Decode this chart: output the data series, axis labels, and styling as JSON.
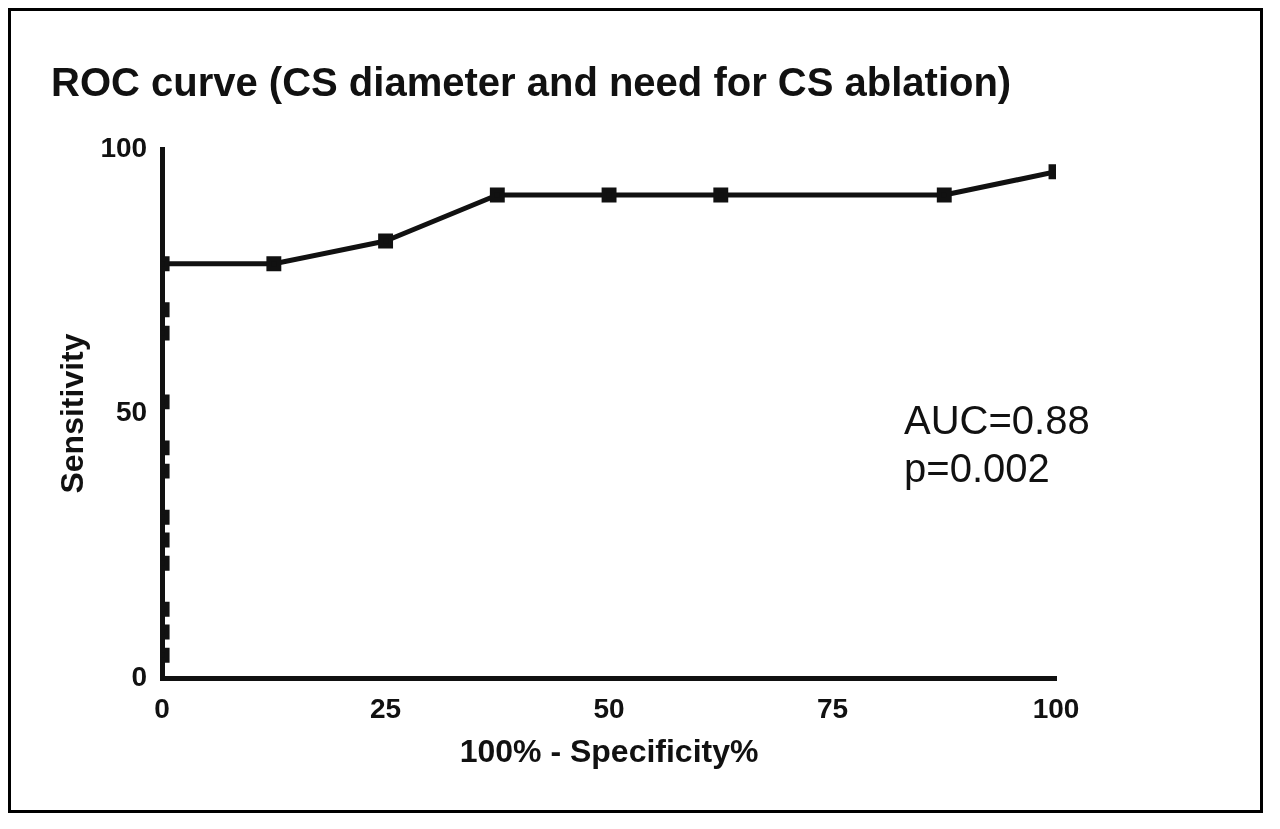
{
  "chart_data": {
    "type": "line",
    "title": "ROC curve (CS diameter and need for CS ablation)",
    "xlabel": "100% - Specificity%",
    "ylabel": "Sensitivity",
    "x": [
      0,
      0,
      0,
      0,
      0,
      0,
      0,
      0,
      0,
      0,
      0,
      0,
      12.5,
      25,
      37.5,
      50,
      62.5,
      87.5,
      100
    ],
    "series": [
      {
        "color": "#111111",
        "values": [
          4.3,
          8.7,
          13,
          21.7,
          26.1,
          30.4,
          39.1,
          43.5,
          52.2,
          65.2,
          69.6,
          78.3,
          78.3,
          82.6,
          91.3,
          91.3,
          91.3,
          91.3,
          95.7
        ]
      }
    ],
    "xlim": [
      0,
      100
    ],
    "xticks": [
      0,
      25,
      50,
      75,
      100
    ],
    "ylim": [
      0,
      100
    ],
    "yticks": [
      0,
      50,
      100
    ],
    "annotations": [
      "AUC=0.88\np=0.002"
    ],
    "marker": "square",
    "line_style": "solid",
    "grid": false,
    "legend": false
  }
}
